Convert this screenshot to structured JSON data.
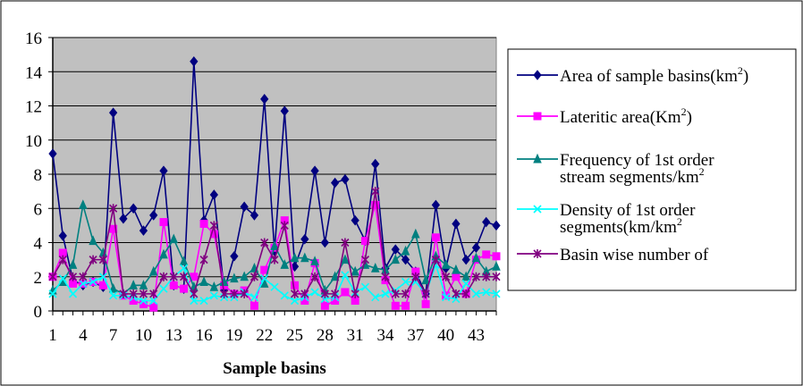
{
  "chart_data": {
    "type": "line",
    "xlabel": "Sample basins",
    "ylabel": "",
    "x": [
      1,
      2,
      3,
      4,
      5,
      6,
      7,
      8,
      9,
      10,
      11,
      12,
      13,
      14,
      15,
      16,
      17,
      18,
      19,
      20,
      21,
      22,
      23,
      24,
      25,
      26,
      27,
      28,
      29,
      30,
      31,
      32,
      33,
      34,
      35,
      36,
      37,
      38,
      39,
      40,
      41,
      42,
      43,
      44,
      45
    ],
    "x_tick_labels": [
      "1",
      "4",
      "7",
      "10",
      "13",
      "16",
      "19",
      "22",
      "25",
      "28",
      "31",
      "34",
      "37",
      "40",
      "43"
    ],
    "x_tick_values": [
      1,
      4,
      7,
      10,
      13,
      16,
      19,
      22,
      25,
      28,
      31,
      34,
      37,
      40,
      43
    ],
    "ylim": [
      0,
      16
    ],
    "y_ticks": [
      0,
      2,
      4,
      6,
      8,
      10,
      12,
      14,
      16
    ],
    "grid": true,
    "plot_background": "#c0c0c0",
    "legend_position": "right",
    "series": [
      {
        "name": "Area of sample basins(km",
        "name_sup": "2",
        "name_suffix": ")",
        "color": "#000080",
        "marker": "diamond",
        "values": [
          9.2,
          4.4,
          1.8,
          1.5,
          1.7,
          1.4,
          11.6,
          5.4,
          6.0,
          4.7,
          5.6,
          8.2,
          1.5,
          1.3,
          14.6,
          5.3,
          6.8,
          1.2,
          3.2,
          6.1,
          5.6,
          12.4,
          3.5,
          11.7,
          2.6,
          4.2,
          8.2,
          4.0,
          7.5,
          7.7,
          5.3,
          4.1,
          8.6,
          2.5,
          3.6,
          3.0,
          2.3,
          1.0,
          6.2,
          2.5,
          5.1,
          3.0,
          3.7,
          5.2,
          5.0
        ]
      },
      {
        "name": "Lateritic area(Km",
        "name_sup": "2",
        "name_suffix": ")",
        "color": "#ff00ff",
        "marker": "square",
        "values": [
          2.0,
          3.4,
          1.6,
          1.6,
          1.7,
          1.5,
          4.8,
          0.9,
          0.6,
          0.4,
          0.2,
          5.2,
          1.5,
          1.3,
          2.0,
          5.1,
          4.5,
          1.5,
          1.0,
          1.2,
          0.3,
          2.4,
          3.7,
          5.3,
          1.5,
          0.6,
          2.8,
          0.3,
          0.6,
          1.1,
          0.6,
          4.1,
          6.2,
          1.8,
          0.3,
          0.3,
          2.3,
          0.4,
          4.3,
          0.9,
          2.0,
          1.0,
          3.0,
          3.3,
          3.2
        ]
      },
      {
        "name": "Frequency of 1st order stream segments/km",
        "name_lines": [
          "Frequency of 1st order",
          "stream segments/km"
        ],
        "name_sup": "2",
        "name_suffix": "",
        "color": "#008080",
        "marker": "triangle",
        "values": [
          1.2,
          1.7,
          2.7,
          6.2,
          4.1,
          3.4,
          1.3,
          1.0,
          1.5,
          1.5,
          2.3,
          3.3,
          4.2,
          2.9,
          1.4,
          1.7,
          1.4,
          1.7,
          1.9,
          2.0,
          2.5,
          1.6,
          3.8,
          2.7,
          3.1,
          3.1,
          2.9,
          1.2,
          2.0,
          3.0,
          2.3,
          2.7,
          2.5,
          2.4,
          3.0,
          3.5,
          4.5,
          1.8,
          3.2,
          2.7,
          2.4,
          2.0,
          3.1,
          2.3,
          2.6
        ]
      },
      {
        "name": "Density of 1st order segments(km/km",
        "name_lines": [
          "Density of 1st order",
          "segments(km/km"
        ],
        "name_sup": "2",
        "name_suffix": "",
        "color": "#00ffff",
        "marker": "x",
        "values": [
          1.0,
          1.9,
          1.0,
          1.6,
          1.7,
          2.0,
          0.9,
          0.9,
          0.8,
          0.6,
          0.6,
          1.3,
          2.0,
          2.5,
          0.6,
          0.6,
          0.9,
          0.8,
          0.8,
          1.1,
          0.8,
          1.9,
          1.4,
          0.9,
          0.6,
          0.8,
          1.1,
          0.7,
          0.8,
          2.1,
          1.1,
          1.4,
          0.8,
          1.0,
          1.2,
          1.7,
          1.7,
          1.0,
          2.7,
          0.8,
          0.7,
          1.6,
          1.0,
          1.1,
          1.0
        ]
      },
      {
        "name": "Basin wise number of",
        "name_sup": "",
        "name_suffix": "",
        "color": "#800080",
        "marker": "asterisk",
        "values": [
          2.0,
          3.0,
          2.0,
          2.0,
          3.0,
          3.0,
          6.0,
          1.0,
          1.0,
          1.0,
          1.0,
          2.0,
          2.0,
          2.0,
          1.0,
          3.0,
          5.0,
          1.0,
          1.0,
          1.0,
          2.0,
          4.0,
          3.0,
          5.0,
          1.0,
          1.0,
          2.0,
          1.0,
          1.0,
          4.0,
          1.0,
          3.0,
          7.0,
          2.0,
          1.0,
          1.0,
          2.0,
          1.0,
          3.0,
          2.0,
          1.0,
          1.0,
          2.0,
          2.0,
          2.0
        ]
      }
    ]
  }
}
